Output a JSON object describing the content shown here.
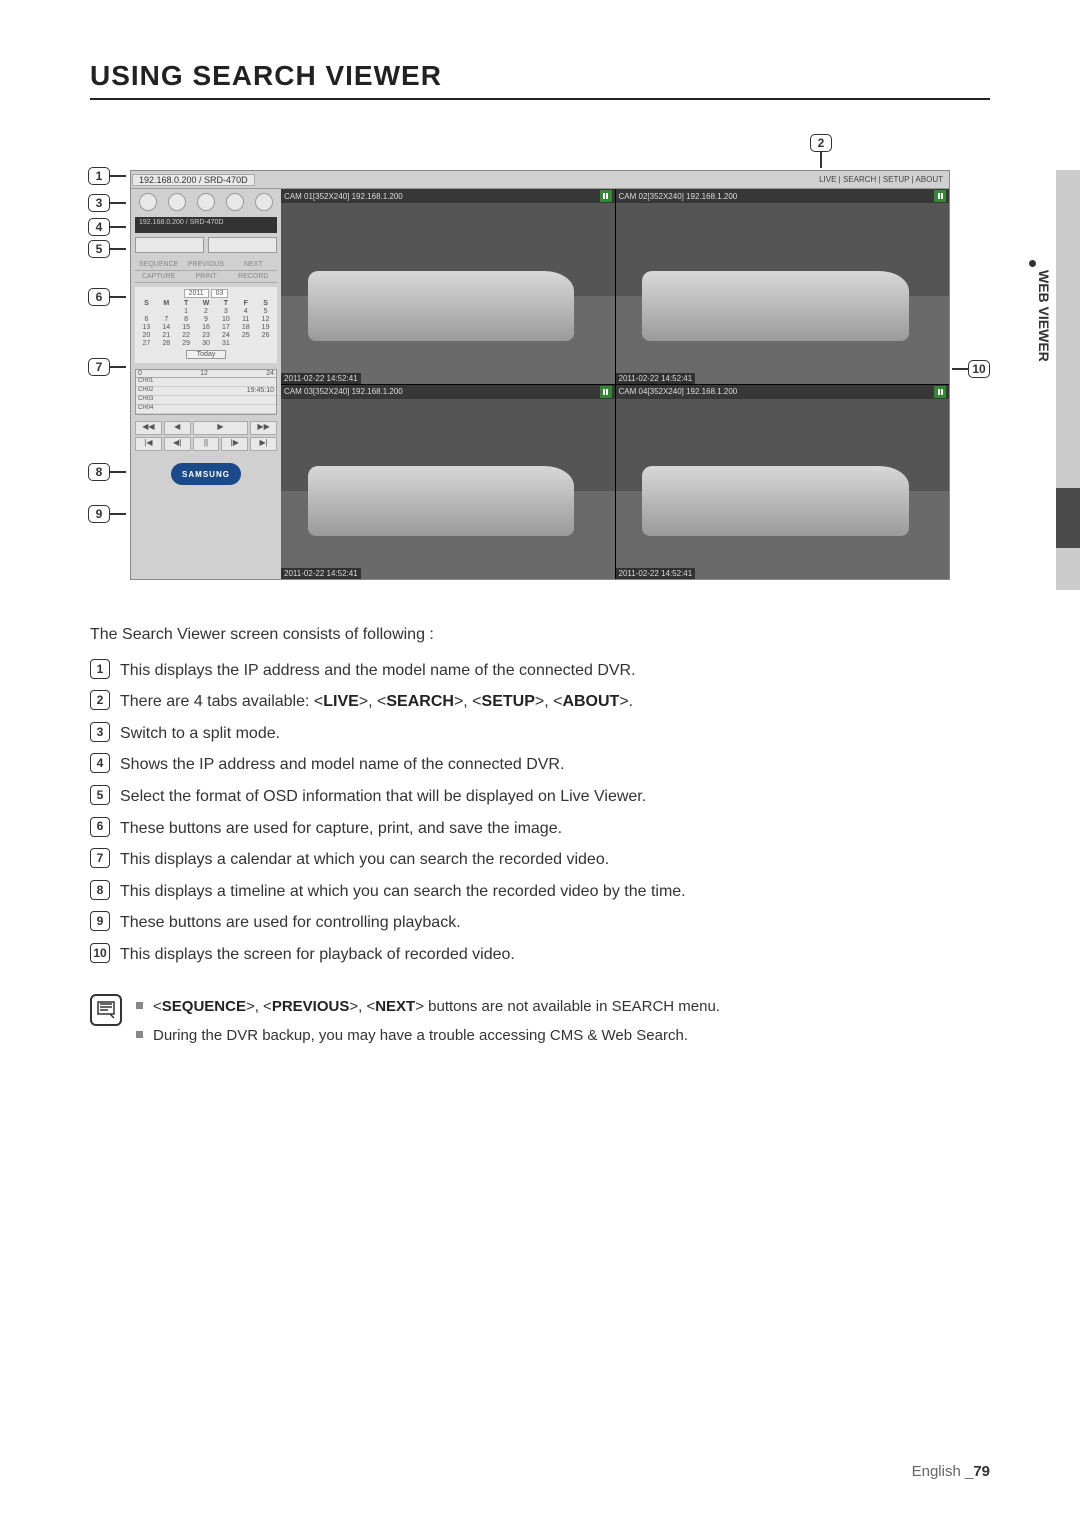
{
  "heading": "USING SEARCH VIEWER",
  "sideLabel": "WEB VIEWER",
  "shot": {
    "topLeft": "192.168.0.200 / SRD-470D",
    "topRight": "LIVE  |  SEARCH  |  SETUP  | ABOUT",
    "ipBar": "192.168.0.200   / SRD-470D",
    "tabs1": {
      "a": "SEQUENCE",
      "b": "PREVIOUS",
      "c": "NEXT"
    },
    "tabs2": {
      "a": "CAPTURE",
      "b": "PRINT",
      "c": "RECORD"
    },
    "calYear": "2011",
    "calMonth": "03",
    "calDow": [
      "S",
      "M",
      "T",
      "W",
      "T",
      "F",
      "S"
    ],
    "calDays": [
      "",
      "",
      "1",
      "2",
      "3",
      "4",
      "5",
      "6",
      "7",
      "8",
      "9",
      "10",
      "11",
      "12",
      "13",
      "14",
      "15",
      "16",
      "17",
      "18",
      "19",
      "20",
      "21",
      "22",
      "23",
      "24",
      "25",
      "26",
      "27",
      "28",
      "29",
      "30",
      "31",
      "",
      "",
      ""
    ],
    "today": "Today",
    "tlHeadL": "0",
    "tlHeadM": "12",
    "tlHeadR": "24",
    "ch1": "CH01",
    "ch2": "CH02",
    "ch3": "CH03",
    "ch4": "CH04",
    "tlTime": "19:45:10",
    "logo": "SAMSUNG",
    "cam1": "CAM 01[352X240] 192.168.1.200",
    "cam2": "CAM 02[352X240] 192.168.1.200",
    "cam3": "CAM 03[352X240] 192.168.1.200",
    "cam4": "CAM 04[352X240] 192.168.1.200",
    "ts": "2011-02-22 14:52:41",
    "play": {
      "a": "◀◀",
      "b": "◀",
      "c": "▶",
      "d": "▶▶",
      "e": "|◀",
      "f": "◀|",
      "g": "||",
      "h": "|▶",
      "i": "▶|"
    }
  },
  "desc": {
    "intro": "The Search Viewer screen consists of following :",
    "i1": "This displays the IP address and the model name of the connected DVR.",
    "i2_pre": "There are 4 tabs available: <",
    "i2_b1": "LIVE",
    "i2_m1": ">, <",
    "i2_b2": "SEARCH",
    "i2_m2": ">, <",
    "i2_b3": "SETUP",
    "i2_m3": ">, <",
    "i2_b4": "ABOUT",
    "i2_post": ">.",
    "i3": "Switch to a split mode.",
    "i4": "Shows the IP address and model name of the connected DVR.",
    "i5": "Select the format of OSD information that will be displayed on Live Viewer.",
    "i6": "These buttons are used for capture, print, and save the image.",
    "i7": "This displays a calendar at which you can search the recorded video.",
    "i8": "This displays a timeline at which you can search the recorded video by the time.",
    "i9": "These buttons are used for controlling playback.",
    "i10": "This displays the screen for playback of recorded video."
  },
  "notes": {
    "n1_pre": "<",
    "n1_b1": "SEQUENCE",
    "n1_m1": ">, <",
    "n1_b2": "PREVIOUS",
    "n1_m2": ">, <",
    "n1_b3": "NEXT",
    "n1_post": "> buttons are not available in SEARCH menu.",
    "n2": "During the DVR backup, you may have a trouble accessing CMS & Web Search."
  },
  "footer": {
    "lang": "English _",
    "page": "79"
  },
  "nums": {
    "n1": "1",
    "n2": "2",
    "n3": "3",
    "n4": "4",
    "n5": "5",
    "n6": "6",
    "n7": "7",
    "n8": "8",
    "n9": "9",
    "n10": "10"
  },
  "colors": {
    "text": "#333333",
    "heading": "#222222",
    "sideBar": "#cccccc",
    "sideBarDark": "#4a4a4a",
    "shotBg": "#c8c8c8",
    "logoBg": "#1a4a8a"
  }
}
